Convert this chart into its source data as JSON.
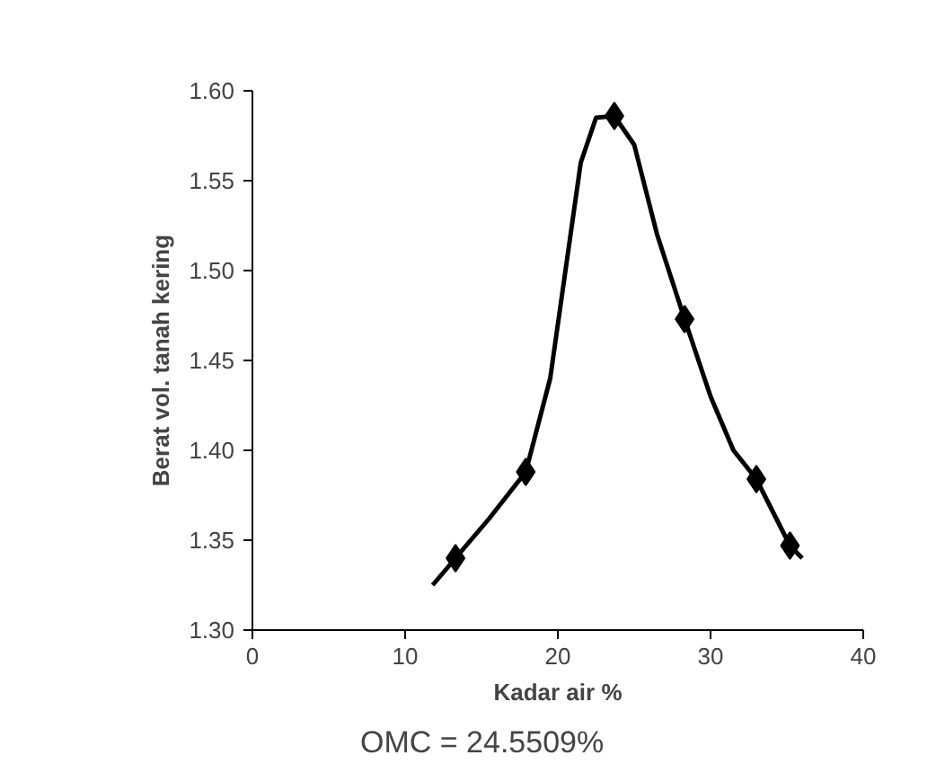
{
  "chart_data": {
    "type": "scatter",
    "xlabel": "Kadar air %",
    "ylabel": "Berat vol. tanah kering",
    "series": [
      {
        "type": "scatter",
        "color": "#000000",
        "marker": "diamond",
        "x": [
          13.3,
          17.9,
          23.7,
          28.3,
          33.0,
          35.2
        ],
        "values": [
          1.34,
          1.388,
          1.586,
          1.473,
          1.384,
          1.347
        ]
      },
      {
        "type": "line",
        "color": "#000000",
        "marker": "none",
        "x": [
          11.8,
          13.3,
          15.5,
          17.9,
          19.5,
          20.5,
          21.5,
          22.5,
          23.7,
          25.0,
          26.5,
          28.3,
          30.0,
          31.5,
          33.0,
          35.2,
          36.0
        ],
        "values": [
          1.325,
          1.34,
          1.362,
          1.388,
          1.44,
          1.5,
          1.56,
          1.585,
          1.586,
          1.57,
          1.52,
          1.473,
          1.43,
          1.4,
          1.384,
          1.347,
          1.34
        ]
      }
    ],
    "xlim": [
      0,
      40
    ],
    "xticks": [
      0,
      10,
      20,
      30,
      40
    ],
    "ylim": [
      1.3,
      1.6
    ],
    "yticks": [
      {
        "value": 1.3,
        "label": "1.30"
      },
      {
        "value": 1.35,
        "label": "1.35"
      },
      {
        "value": 1.4,
        "label": "1.40"
      },
      {
        "value": 1.45,
        "label": "1.45"
      },
      {
        "value": 1.5,
        "label": "1.50"
      },
      {
        "value": 1.55,
        "label": "1.55"
      },
      {
        "value": 1.6,
        "label": "1.60"
      }
    ],
    "grid": false,
    "annotations": [
      "OMC = 24.5509%"
    ]
  }
}
